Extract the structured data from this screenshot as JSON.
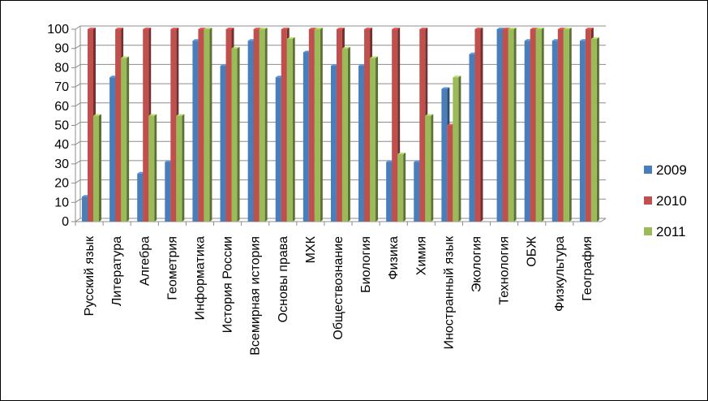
{
  "chart_data": {
    "type": "bar",
    "title": "",
    "xlabel": "",
    "ylabel": "",
    "ylim": [
      0,
      100
    ],
    "yticks": [
      0,
      10,
      20,
      30,
      40,
      50,
      60,
      70,
      80,
      90,
      100
    ],
    "grid": true,
    "legend_position": "right",
    "categories": [
      "Русский язык",
      "Литература",
      "Алгебра",
      "Геометрия",
      "Информатика",
      "История России",
      "Всемирная история",
      "Основы права",
      "МХК",
      "Обществознание",
      "Биология",
      "Физика",
      "Химия",
      "Иностранный язык",
      "Экология",
      "Технология",
      "ОБЖ",
      "Физкультура",
      "География"
    ],
    "series": [
      {
        "name": "2009",
        "color": "#4a7ebb",
        "values": [
          13,
          75,
          25,
          31,
          94,
          81,
          94,
          75,
          88,
          81,
          81,
          31,
          31,
          69,
          87,
          100,
          94,
          94,
          94
        ]
      },
      {
        "name": "2010",
        "color": "#c0504d",
        "values": [
          100,
          100,
          100,
          100,
          100,
          100,
          100,
          100,
          100,
          100,
          100,
          100,
          100,
          50,
          100,
          100,
          100,
          100,
          100
        ]
      },
      {
        "name": "2011",
        "color": "#9bbb59",
        "values": [
          55,
          85,
          55,
          55,
          100,
          90,
          100,
          95,
          100,
          90,
          85,
          35,
          55,
          75,
          0,
          100,
          100,
          100,
          95
        ]
      }
    ]
  }
}
